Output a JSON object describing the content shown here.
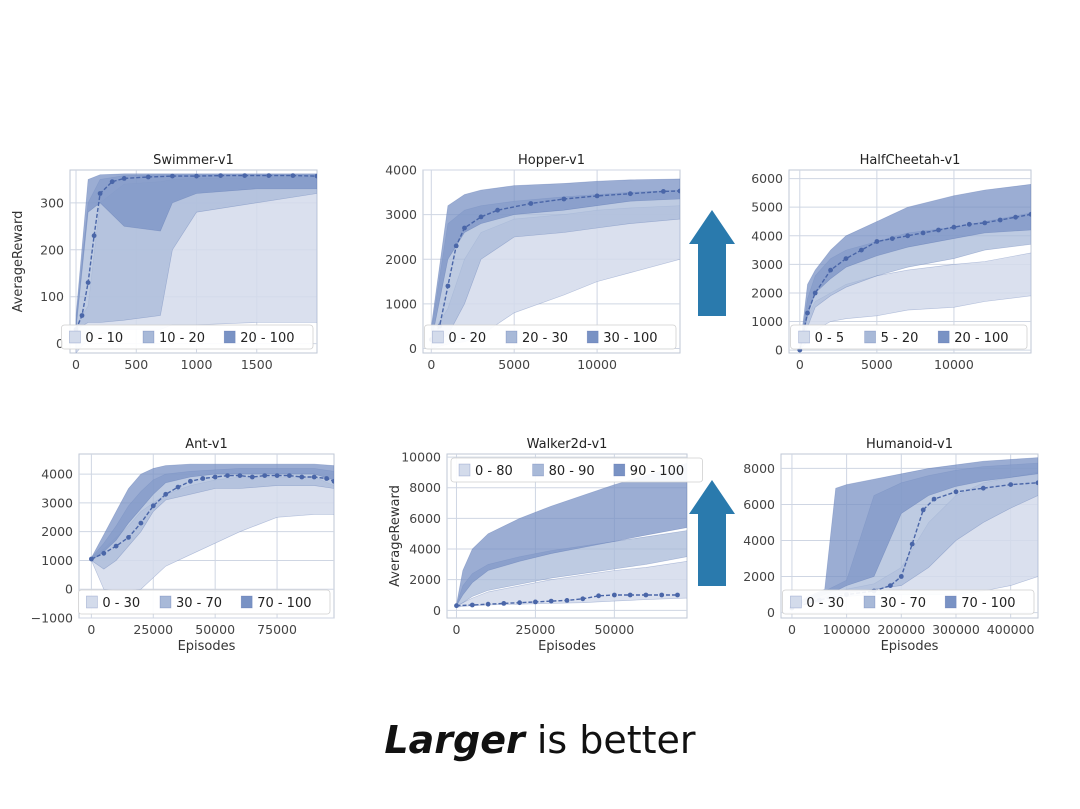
{
  "caption": {
    "emphasis": "Larger",
    "rest": " is better"
  },
  "colors": {
    "band_low": "#d3dbeb",
    "band_mid": "#a8b9d8",
    "band_high": "#7992c4",
    "line": "#4a66a8",
    "arrow": "#2a7aad",
    "grid": "#cfd6e3"
  },
  "chart_data": [
    {
      "type": "area",
      "title": "Swimmer-v1",
      "ylabel": "AverageReward",
      "xlabel": "",
      "xlim": [
        -50,
        2000
      ],
      "ylim": [
        -20,
        370
      ],
      "xticks": [
        0,
        500,
        1000,
        1500
      ],
      "yticks": [
        0,
        100,
        200,
        300
      ],
      "legend": {
        "placement": "bottom-right",
        "entries": [
          "0 - 10",
          "10 - 20",
          "20 - 100"
        ]
      },
      "bands": {
        "x": [
          0,
          100,
          200,
          400,
          700,
          800,
          1000,
          1500,
          2000
        ],
        "low": [
          [
            -20,
            10,
            20,
            30,
            30,
            40,
            40,
            45,
            45
          ],
          [
            40,
            80,
            300,
            340,
            345,
            350,
            352,
            353,
            355
          ]
        ],
        "mid": [
          [
            30,
            45,
            45,
            50,
            60,
            200,
            280,
            300,
            320
          ],
          [
            50,
            300,
            350,
            358,
            360,
            360,
            360,
            360,
            360
          ]
        ],
        "high": [
          [
            30,
            280,
            300,
            250,
            240,
            300,
            320,
            330,
            330
          ],
          [
            60,
            350,
            360,
            362,
            362,
            362,
            362,
            362,
            362
          ]
        ]
      },
      "mean": {
        "x": [
          0,
          50,
          100,
          150,
          200,
          300,
          400,
          600,
          800,
          1000,
          1200,
          1400,
          1600,
          1800,
          2000
        ],
        "y": [
          30,
          60,
          130,
          230,
          320,
          345,
          352,
          355,
          357,
          357,
          358,
          358,
          358,
          358,
          357
        ]
      }
    },
    {
      "type": "area",
      "title": "Hopper-v1",
      "xlabel": "",
      "ylabel": "",
      "xlim": [
        -500,
        15000
      ],
      "ylim": [
        -100,
        4000
      ],
      "xticks": [
        0,
        5000,
        10000
      ],
      "yticks": [
        0,
        1000,
        2000,
        3000,
        4000
      ],
      "legend": {
        "placement": "bottom-right",
        "entries": [
          "0 - 20",
          "20 - 30",
          "30 - 100"
        ]
      },
      "bands": {
        "x": [
          0,
          1000,
          2000,
          3000,
          5000,
          8000,
          10000,
          12000,
          15000
        ],
        "low": [
          [
            0,
            100,
            150,
            300,
            800,
            1200,
            1500,
            1700,
            2000
          ],
          [
            300,
            900,
            2000,
            2600,
            2900,
            3000,
            3100,
            3150,
            3200
          ]
        ],
        "mid": [
          [
            100,
            300,
            1000,
            2000,
            2500,
            2600,
            2700,
            2800,
            2900
          ],
          [
            400,
            2800,
            3100,
            3200,
            3300,
            3400,
            3450,
            3500,
            3550
          ]
        ],
        "high": [
          [
            150,
            2000,
            2600,
            2800,
            3000,
            3100,
            3200,
            3300,
            3350
          ],
          [
            500,
            3200,
            3450,
            3550,
            3650,
            3700,
            3750,
            3780,
            3800
          ]
        ]
      },
      "mean": {
        "x": [
          0,
          500,
          1000,
          1500,
          2000,
          3000,
          4000,
          6000,
          8000,
          10000,
          12000,
          14000,
          15000
        ],
        "y": [
          200,
          500,
          1400,
          2300,
          2700,
          2950,
          3100,
          3250,
          3350,
          3420,
          3470,
          3520,
          3530
        ]
      }
    },
    {
      "type": "area",
      "title": "HalfCheetah-v1",
      "xlabel": "",
      "ylabel": "",
      "xlim": [
        -700,
        15000
      ],
      "ylim": [
        -100,
        6300
      ],
      "xticks": [
        0,
        5000,
        10000
      ],
      "yticks": [
        0,
        1000,
        2000,
        3000,
        4000,
        5000,
        6000
      ],
      "legend": {
        "placement": "bottom-right",
        "entries": [
          "0 - 5",
          "5 - 20",
          "20 - 100"
        ]
      },
      "bands": {
        "x": [
          0,
          500,
          1000,
          2000,
          3000,
          5000,
          7000,
          10000,
          12000,
          15000
        ],
        "low": [
          [
            0,
            300,
            700,
            1000,
            1100,
            1200,
            1400,
            1500,
            1700,
            1900
          ],
          [
            0,
            1200,
            1700,
            2000,
            2300,
            2600,
            2800,
            3000,
            3100,
            3400
          ]
        ],
        "mid": [
          [
            0,
            800,
            1500,
            1900,
            2200,
            2600,
            2900,
            3200,
            3500,
            3700
          ],
          [
            0,
            1800,
            2600,
            3200,
            3500,
            3800,
            4100,
            4300,
            4500,
            4800
          ]
        ],
        "high": [
          [
            0,
            1200,
            2000,
            2500,
            2900,
            3300,
            3600,
            3900,
            4100,
            4200
          ],
          [
            0,
            2300,
            2800,
            3500,
            4000,
            4500,
            5000,
            5400,
            5600,
            5800
          ]
        ]
      },
      "mean": {
        "x": [
          0,
          500,
          1000,
          2000,
          3000,
          4000,
          5000,
          6000,
          7000,
          8000,
          9000,
          10000,
          11000,
          12000,
          13000,
          14000,
          15000
        ],
        "y": [
          0,
          1300,
          2000,
          2800,
          3200,
          3500,
          3800,
          3900,
          4000,
          4100,
          4200,
          4300,
          4400,
          4450,
          4550,
          4650,
          4750
        ]
      }
    },
    {
      "type": "area",
      "title": "Ant-v1",
      "xlabel": "Episodes",
      "ylabel": "",
      "xlim": [
        -5000,
        98000
      ],
      "ylim": [
        -1000,
        4700
      ],
      "xticks": [
        0,
        25000,
        50000,
        75000
      ],
      "yticks": [
        -1000,
        0,
        1000,
        2000,
        3000,
        4000
      ],
      "legend": {
        "placement": "bottom-right",
        "entries": [
          "0 - 30",
          "30 - 70",
          "70 - 100"
        ]
      },
      "bands": {
        "x": [
          0,
          5000,
          10000,
          15000,
          20000,
          25000,
          30000,
          40000,
          50000,
          60000,
          75000,
          90000,
          98000
        ],
        "low": [
          [
            1000,
            0,
            -50,
            -50,
            0,
            400,
            800,
            1200,
            1600,
            2000,
            2500,
            2600,
            2600
          ],
          [
            1100,
            1400,
            1800,
            2200,
            2700,
            3000,
            3300,
            3600,
            3800,
            3900,
            3900,
            3900,
            3600
          ]
        ],
        "mid": [
          [
            1000,
            700,
            1000,
            1500,
            2000,
            2700,
            3100,
            3300,
            3500,
            3500,
            3600,
            3600,
            3500
          ],
          [
            1100,
            1600,
            2200,
            2900,
            3400,
            3800,
            4000,
            4100,
            4150,
            4200,
            4200,
            4200,
            4100
          ]
        ],
        "high": [
          [
            1000,
            1300,
            1700,
            2300,
            2800,
            3300,
            3700,
            3900,
            4000,
            4000,
            4000,
            4000,
            3800
          ],
          [
            1100,
            1900,
            2700,
            3500,
            4000,
            4200,
            4300,
            4350,
            4350,
            4350,
            4350,
            4350,
            4300
          ]
        ]
      },
      "mean": {
        "x": [
          0,
          5000,
          10000,
          15000,
          20000,
          25000,
          30000,
          35000,
          40000,
          45000,
          50000,
          55000,
          60000,
          65000,
          70000,
          75000,
          80000,
          85000,
          90000,
          95000,
          98000
        ],
        "y": [
          1050,
          1250,
          1500,
          1800,
          2300,
          2900,
          3300,
          3550,
          3750,
          3850,
          3900,
          3950,
          3950,
          3900,
          3950,
          3950,
          3950,
          3900,
          3900,
          3850,
          3750
        ]
      }
    },
    {
      "type": "area",
      "title": "Walker2d-v1",
      "xlabel": "Episodes",
      "ylabel": "AverageReward",
      "xlim": [
        -3000,
        73000
      ],
      "ylim": [
        -500,
        10200
      ],
      "xticks": [
        0,
        25000,
        50000
      ],
      "yticks": [
        0,
        2000,
        4000,
        6000,
        8000,
        10000
      ],
      "legend": {
        "placement": "top-left",
        "entries": [
          "0 - 80",
          "80 - 90",
          "90 - 100"
        ]
      },
      "bands": {
        "x": [
          0,
          2000,
          5000,
          10000,
          20000,
          30000,
          40000,
          50000,
          60000,
          73000
        ],
        "low": [
          [
            200,
            250,
            300,
            350,
            400,
            450,
            500,
            600,
            700,
            800
          ],
          [
            300,
            500,
            800,
            1200,
            1600,
            2000,
            2300,
            2600,
            2800,
            3200
          ]
        ],
        "mid": [
          [
            250,
            500,
            900,
            1300,
            1700,
            2100,
            2400,
            2700,
            3000,
            3500
          ],
          [
            350,
            1600,
            2400,
            3000,
            3500,
            3900,
            4200,
            4500,
            4800,
            5200
          ]
        ],
        "high": [
          [
            300,
            1000,
            1800,
            2600,
            3200,
            3700,
            4100,
            4500,
            4900,
            5400
          ],
          [
            400,
            2600,
            4000,
            5000,
            6000,
            6800,
            7500,
            8200,
            8800,
            9600
          ]
        ]
      },
      "mean": {
        "x": [
          0,
          5000,
          10000,
          15000,
          20000,
          25000,
          30000,
          35000,
          40000,
          45000,
          50000,
          55000,
          60000,
          65000,
          70000
        ],
        "y": [
          300,
          350,
          400,
          450,
          500,
          550,
          600,
          650,
          750,
          950,
          1000,
          1000,
          1000,
          1000,
          1000
        ]
      }
    },
    {
      "type": "area",
      "title": "Humanoid-v1",
      "xlabel": "Episodes",
      "ylabel": "",
      "xlim": [
        -20000,
        450000
      ],
      "ylim": [
        -300,
        8800
      ],
      "xticks": [
        0,
        100000,
        200000,
        300000,
        400000
      ],
      "yticks": [
        0,
        2000,
        4000,
        6000,
        8000
      ],
      "legend": {
        "placement": "bottom-right",
        "entries": [
          "0 - 30",
          "30 - 70",
          "70 - 100"
        ]
      },
      "bands": {
        "x": [
          0,
          30000,
          60000,
          80000,
          100000,
          150000,
          200000,
          250000,
          300000,
          350000,
          400000,
          450000
        ],
        "low": [
          [
            250,
            500,
            600,
            800,
            900,
            1000,
            1000,
            1000,
            1000,
            1200,
            1500,
            2000
          ],
          [
            300,
            700,
            900,
            1100,
            1300,
            1600,
            2500,
            5000,
            6500,
            7200,
            7500,
            7800
          ]
        ],
        "mid": [
          [
            280,
            600,
            800,
            1000,
            1100,
            1300,
            1500,
            2500,
            4000,
            5000,
            5800,
            6500
          ],
          [
            320,
            800,
            1200,
            1500,
            1800,
            6500,
            7200,
            7600,
            7900,
            8100,
            8200,
            8300
          ]
        ],
        "high": [
          [
            300,
            700,
            1000,
            1200,
            1500,
            2000,
            5500,
            6500,
            7000,
            7300,
            7500,
            7700
          ],
          [
            350,
            900,
            1300,
            6900,
            7100,
            7400,
            7700,
            8000,
            8200,
            8400,
            8500,
            8600
          ]
        ]
      },
      "mean": {
        "x": [
          0,
          50000,
          100000,
          150000,
          180000,
          200000,
          220000,
          240000,
          260000,
          300000,
          350000,
          400000,
          450000
        ],
        "y": [
          250,
          700,
          1000,
          1200,
          1500,
          2000,
          3800,
          5700,
          6300,
          6700,
          6900,
          7100,
          7200
        ]
      }
    }
  ]
}
